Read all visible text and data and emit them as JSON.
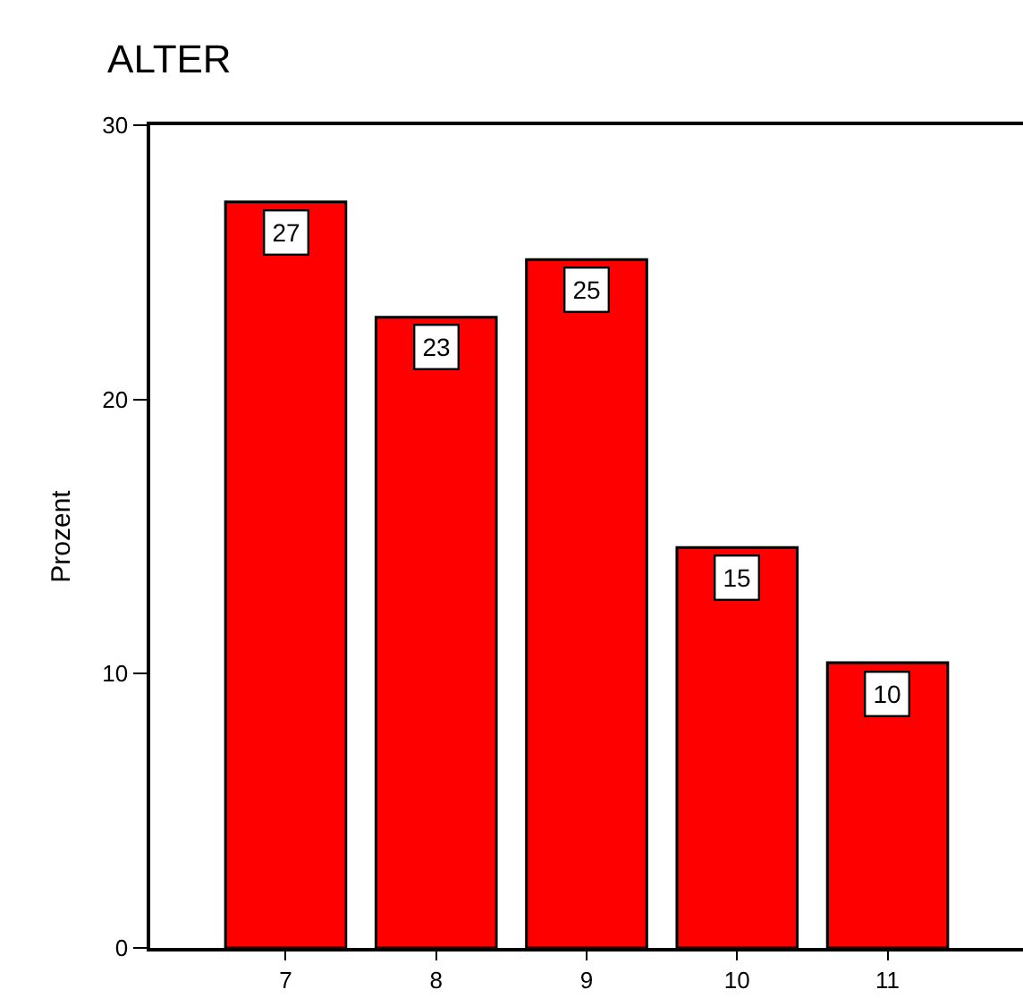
{
  "chart_data": {
    "type": "bar",
    "title": "ALTER",
    "ylabel": "Prozent",
    "categories": [
      "7",
      "8",
      "9",
      "10",
      "11"
    ],
    "values": [
      27.2,
      23.0,
      25.1,
      14.6,
      10.4
    ],
    "value_labels": [
      "27",
      "23",
      "25",
      "15",
      "10"
    ],
    "color": "#ff0000",
    "ylim": [
      0,
      30
    ],
    "yticks": [
      0,
      10,
      20,
      30
    ],
    "grid": false,
    "legend": false
  }
}
